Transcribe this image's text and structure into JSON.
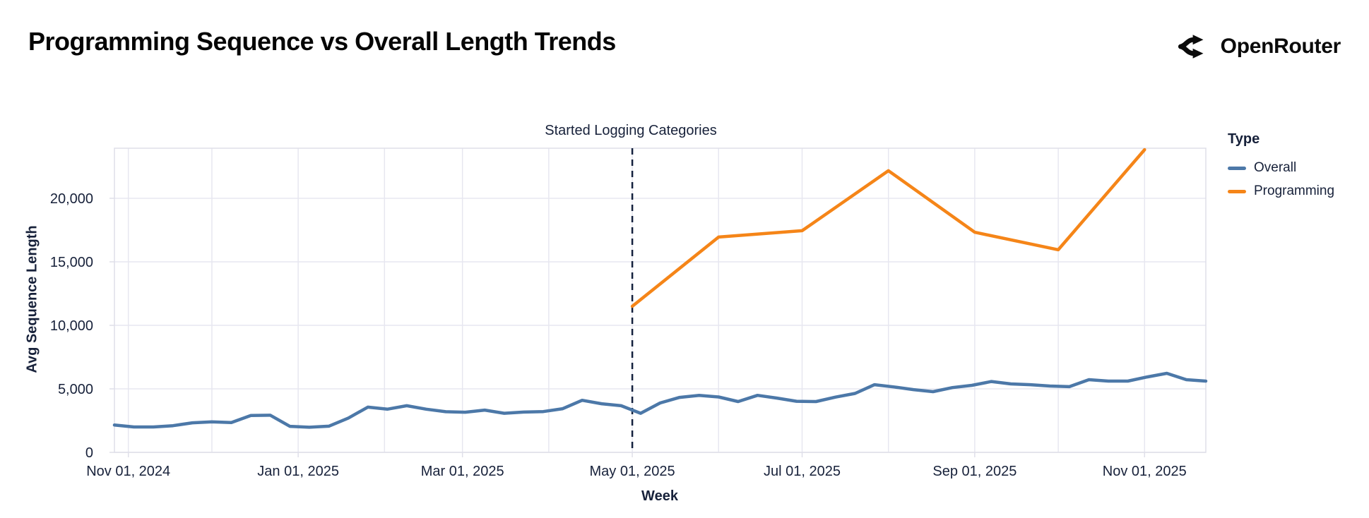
{
  "page": {
    "title": "Programming Sequence vs Overall Length Trends",
    "brand": {
      "name": "OpenRouter"
    }
  },
  "chart_data": {
    "type": "line",
    "title": "Programming Sequence vs Overall Length Trends",
    "xlabel": "Week",
    "ylabel": "Avg Sequence Length",
    "x_domain": [
      "2024-10-27",
      "2025-11-23"
    ],
    "y_max": 23944,
    "grid": true,
    "x_ticks": [
      {
        "date": "2024-11-01",
        "label": "Nov 01, 2024"
      },
      {
        "date": "2025-01-01",
        "label": "Jan 01, 2025"
      },
      {
        "date": "2025-03-01",
        "label": "Mar 01, 2025"
      },
      {
        "date": "2025-05-01",
        "label": "May 01, 2025"
      },
      {
        "date": "2025-07-01",
        "label": "Jul 01, 2025"
      },
      {
        "date": "2025-09-01",
        "label": "Sep 01, 2025"
      },
      {
        "date": "2025-11-01",
        "label": "Nov 01, 2025"
      }
    ],
    "y_ticks": [
      {
        "value": 0,
        "label": "0"
      },
      {
        "value": 5000,
        "label": "5,000"
      },
      {
        "value": 10000,
        "label": "10,000"
      },
      {
        "value": 15000,
        "label": "15,000"
      },
      {
        "value": 20000,
        "label": "20,000"
      }
    ],
    "annotation": {
      "label": "Started Logging Categories",
      "x_date": "2025-05-01",
      "line_style": "dashed-vertical",
      "line_color": "#14213d"
    },
    "legend": {
      "title": "Type",
      "position": "right",
      "entries": [
        {
          "label": "Overall",
          "color": "#4c78a8"
        },
        {
          "label": "Programming",
          "color": "#f58518"
        }
      ]
    },
    "series": [
      {
        "name": "Overall",
        "color": "#4c78a8",
        "cadence": "weekly",
        "points": [
          [
            "2024-10-27",
            2150
          ],
          [
            "2024-11-03",
            2000
          ],
          [
            "2024-11-10",
            2000
          ],
          [
            "2024-11-17",
            2100
          ],
          [
            "2024-11-24",
            2330
          ],
          [
            "2024-12-01",
            2400
          ],
          [
            "2024-12-08",
            2350
          ],
          [
            "2024-12-15",
            2900
          ],
          [
            "2024-12-22",
            2920
          ],
          [
            "2024-12-29",
            2050
          ],
          [
            "2025-01-05",
            1980
          ],
          [
            "2025-01-12",
            2060
          ],
          [
            "2025-01-19",
            2700
          ],
          [
            "2025-01-26",
            3560
          ],
          [
            "2025-02-02",
            3400
          ],
          [
            "2025-02-09",
            3670
          ],
          [
            "2025-02-16",
            3400
          ],
          [
            "2025-02-23",
            3200
          ],
          [
            "2025-03-02",
            3160
          ],
          [
            "2025-03-09",
            3330
          ],
          [
            "2025-03-16",
            3080
          ],
          [
            "2025-03-23",
            3170
          ],
          [
            "2025-03-30",
            3210
          ],
          [
            "2025-04-06",
            3440
          ],
          [
            "2025-04-13",
            4100
          ],
          [
            "2025-04-20",
            3830
          ],
          [
            "2025-04-27",
            3670
          ],
          [
            "2025-05-04",
            3080
          ],
          [
            "2025-05-11",
            3890
          ],
          [
            "2025-05-18",
            4330
          ],
          [
            "2025-05-25",
            4490
          ],
          [
            "2025-06-01",
            4360
          ],
          [
            "2025-06-08",
            4000
          ],
          [
            "2025-06-15",
            4490
          ],
          [
            "2025-06-22",
            4270
          ],
          [
            "2025-06-29",
            4020
          ],
          [
            "2025-07-06",
            4000
          ],
          [
            "2025-07-13",
            4350
          ],
          [
            "2025-07-20",
            4640
          ],
          [
            "2025-07-27",
            5330
          ],
          [
            "2025-08-03",
            5150
          ],
          [
            "2025-08-10",
            4940
          ],
          [
            "2025-08-17",
            4780
          ],
          [
            "2025-08-24",
            5100
          ],
          [
            "2025-08-31",
            5280
          ],
          [
            "2025-09-07",
            5580
          ],
          [
            "2025-09-14",
            5390
          ],
          [
            "2025-09-21",
            5330
          ],
          [
            "2025-09-28",
            5220
          ],
          [
            "2025-10-05",
            5170
          ],
          [
            "2025-10-12",
            5720
          ],
          [
            "2025-10-19",
            5610
          ],
          [
            "2025-10-26",
            5610
          ],
          [
            "2025-11-02",
            5940
          ],
          [
            "2025-11-09",
            6220
          ],
          [
            "2025-11-16",
            5720
          ],
          [
            "2025-11-23",
            5610
          ]
        ]
      },
      {
        "name": "Programming",
        "color": "#f58518",
        "cadence": "monthly",
        "points": [
          [
            "2025-05-01",
            11500
          ],
          [
            "2025-06-01",
            16950
          ],
          [
            "2025-07-01",
            17450
          ],
          [
            "2025-08-01",
            22170
          ],
          [
            "2025-09-01",
            17330
          ],
          [
            "2025-10-01",
            15950
          ],
          [
            "2025-11-01",
            23830
          ]
        ]
      }
    ]
  },
  "style_colors": {
    "grid": "#e7e7f0",
    "frame": "#dfdfe9",
    "axis_text": "#17213a"
  }
}
